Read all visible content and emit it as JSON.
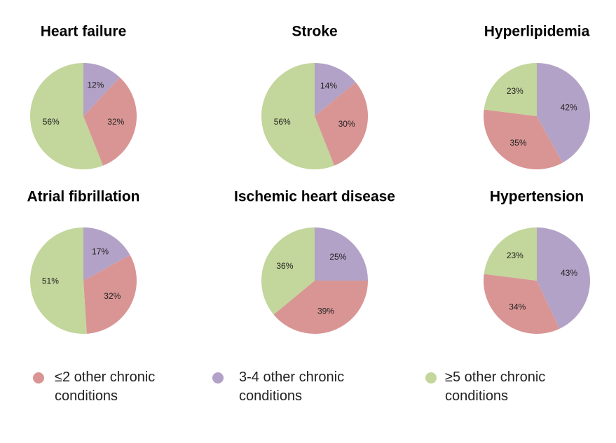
{
  "chart_data": [
    {
      "type": "pie",
      "title": "Heart failure",
      "categories": [
        "≤2 other chronic conditions",
        "3-4 other chronic conditions",
        "≥5 other chronic conditions"
      ],
      "values": [
        32,
        12,
        56
      ],
      "value_labels": [
        "32%",
        "12%",
        "56%"
      ],
      "colors": [
        "#d99594",
        "#b3a2c7",
        "#c3d69b"
      ]
    },
    {
      "type": "pie",
      "title": "Stroke",
      "categories": [
        "≤2 other chronic conditions",
        "3-4 other chronic conditions",
        "≥5 other chronic conditions"
      ],
      "values": [
        30,
        14,
        56
      ],
      "value_labels": [
        "30%",
        "14%",
        "56%"
      ],
      "colors": [
        "#d99594",
        "#b3a2c7",
        "#c3d69b"
      ]
    },
    {
      "type": "pie",
      "title": "Hyperlipidemia",
      "categories": [
        "≤2 other chronic conditions",
        "3-4 other chronic conditions",
        "≥5 other chronic conditions"
      ],
      "values": [
        35,
        42,
        23
      ],
      "value_labels": [
        "35%",
        "42%",
        "23%"
      ],
      "colors": [
        "#d99594",
        "#b3a2c7",
        "#c3d69b"
      ]
    },
    {
      "type": "pie",
      "title": "Atrial fibrillation",
      "categories": [
        "≤2 other chronic conditions",
        "3-4 other chronic conditions",
        "≥5 other chronic conditions"
      ],
      "values": [
        32,
        17,
        51
      ],
      "value_labels": [
        "32%",
        "17%",
        "51%"
      ],
      "colors": [
        "#d99594",
        "#b3a2c7",
        "#c3d69b"
      ]
    },
    {
      "type": "pie",
      "title": "Ischemic heart disease",
      "categories": [
        "≤2 other chronic conditions",
        "3-4 other chronic conditions",
        "≥5 other chronic conditions"
      ],
      "values": [
        39,
        25,
        36
      ],
      "value_labels": [
        "39%",
        "25%",
        "36%"
      ],
      "colors": [
        "#d99594",
        "#b3a2c7",
        "#c3d69b"
      ]
    },
    {
      "type": "pie",
      "title": "Hypertension",
      "categories": [
        "≤2 other chronic conditions",
        "3-4 other chronic conditions",
        "≥5 other chronic conditions"
      ],
      "values": [
        34,
        43,
        23
      ],
      "value_labels": [
        "34%",
        "43%",
        "23%"
      ],
      "colors": [
        "#d99594",
        "#b3a2c7",
        "#c3d69b"
      ]
    }
  ]
}
